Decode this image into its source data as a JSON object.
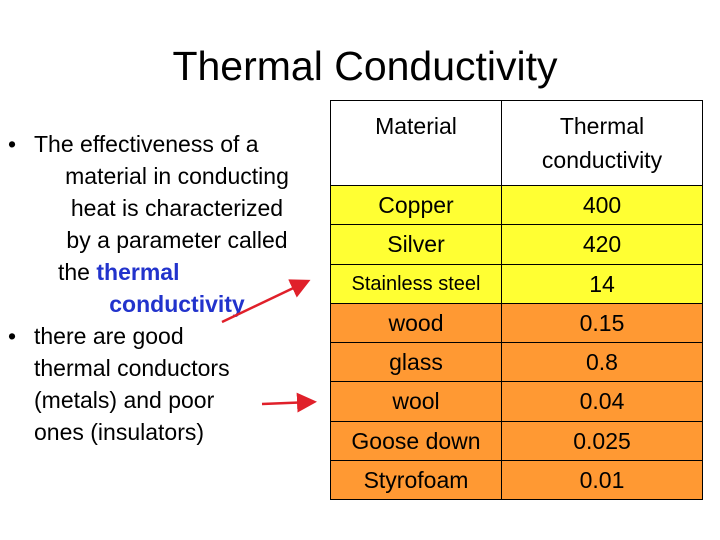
{
  "slide": {
    "title": "Thermal Conductivity",
    "bullets": [
      {
        "lines": [
          "The effectiveness of a",
          "material in conducting",
          "heat is characterized",
          "by a parameter called"
        ],
        "pre": "the ",
        "highlight1": "thermal",
        "highlight2": "conductivity"
      },
      {
        "lines": [
          "there are good",
          "thermal conductors",
          "(metals) and poor",
          "ones (insulators)"
        ]
      }
    ]
  },
  "table": {
    "headers": [
      "Material",
      "Thermal conductivity"
    ],
    "conductors": [
      {
        "material": "Copper",
        "value": "400"
      },
      {
        "material": "Silver",
        "value": "420"
      },
      {
        "material": "Stainless steel",
        "value": "14"
      }
    ],
    "insulators": [
      {
        "material": "wood",
        "value": "0.15"
      },
      {
        "material": "glass",
        "value": "0.8"
      },
      {
        "material": "wool",
        "value": "0.04"
      },
      {
        "material": "Goose down",
        "value": "0.025"
      },
      {
        "material": "Styrofoam",
        "value": "0.01"
      }
    ],
    "colors": {
      "conductors": "#ffff33",
      "insulators": "#ff9933",
      "arrow": "#e0202a"
    }
  }
}
